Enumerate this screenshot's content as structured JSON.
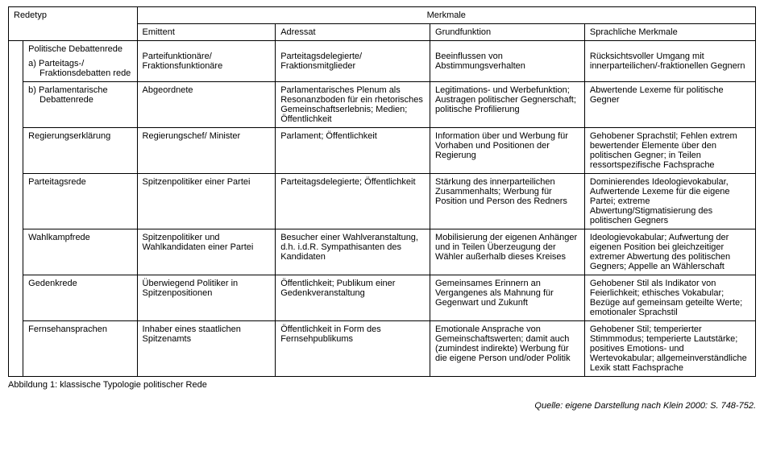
{
  "header": {
    "redetyp": "Redetyp",
    "merkmale": "Merkmale",
    "emittent": "Emittent",
    "adressat": "Adressat",
    "grundfunktion": "Grundfunktion",
    "sprachliche": "Sprachliche Merkmale"
  },
  "rows": {
    "r1": {
      "cat": "Politische Debattenrede",
      "sub_a": "a)  Parteitags-/ Fraktionsdebatten rede",
      "emit": "Parteifunktionäre/ Fraktionsfunktionäre",
      "adr": "Parteitagsdelegierte/ Fraktionsmitglieder",
      "grund": "Beeinflussen von Abstimmungsverhalten",
      "spr": "Rücksichtsvoller Umgang mit innerparteilichen/-fraktionellen Gegnern"
    },
    "r2": {
      "sub_b": "b)  Parlamentarische Debattenrede",
      "emit": "Abgeordnete",
      "adr": "Parlamentarisches Plenum als Resonanzboden für ein rhetorisches Gemeinschaftserlebnis; Medien; Öffentlichkeit",
      "grund": "Legitimations- und Werbefunktion; Austragen politischer Gegnerschaft; politische Profilierung",
      "spr": "Abwertende Lexeme für politische Gegner"
    },
    "r3": {
      "cat": "Regierungserklärung",
      "emit": "Regierungschef/ Minister",
      "adr": "Parlament; Öffentlichkeit",
      "grund": "Information über und Werbung für Vorhaben und Positionen der Regierung",
      "spr": "Gehobener Sprachstil; Fehlen extrem bewertender Elemente über den politischen Gegner; in Teilen ressortspezifische Fachsprache"
    },
    "r4": {
      "cat": "Parteitagsrede",
      "emit": "Spitzenpolitiker einer Partei",
      "adr": "Parteitagsdelegierte; Öffentlichkeit",
      "grund": "Stärkung des innerparteilichen Zusammenhalts; Werbung für Position und Person des Redners",
      "spr": "Dominierendes Ideologievokabular, Aufwertende Lexeme für die eigene Partei; extreme Abwertung/Stigmatisierung des politischen Gegners"
    },
    "r5": {
      "cat": "Wahlkampfrede",
      "emit": "Spitzenpolitiker und Wahlkandidaten einer Partei",
      "adr": "Besucher einer Wahlveranstaltung, d.h. i.d.R. Sympathisanten des Kandidaten",
      "grund": "Mobilisierung der eigenen Anhänger und in Teilen Überzeugung der Wähler außerhalb dieses Kreises",
      "spr": "Ideologievokabular; Aufwertung der eigenen Position bei gleichzeitiger extremer Abwertung des politischen Gegners; Appelle an Wählerschaft"
    },
    "r6": {
      "cat": "Gedenkrede",
      "emit": "Überwiegend Politiker in Spitzenpositionen",
      "adr": "Öffentlichkeit; Publikum einer Gedenkveranstaltung",
      "grund": "Gemeinsames Erinnern an Vergangenes als Mahnung für Gegenwart und Zukunft",
      "spr": "Gehobener Stil als Indikator von Feierlichkeit; ethisches Vokabular; Bezüge auf gemeinsam geteilte Werte; emotionaler Sprachstil"
    },
    "r7": {
      "cat": "Fernsehansprachen",
      "emit": "Inhaber eines staatlichen Spitzenamts",
      "adr": "Öffentlichkeit in Form des Fernsehpublikums",
      "grund": "Emotionale Ansprache von Gemeinschaftswerten; damit auch (zumindest indirekte) Werbung für die eigene Person und/oder Politik",
      "spr": "Gehobener Stil; temperierter Stimmmodus; temperierte Lautstärke; positives Emotions- und Wertevokabular; allgemeinverständliche Lexik statt Fachsprache"
    }
  },
  "caption": "Abbildung 1: klassische Typologie politischer Rede",
  "source": "Quelle: eigene Darstellung nach Klein 2000: S. 748-752."
}
